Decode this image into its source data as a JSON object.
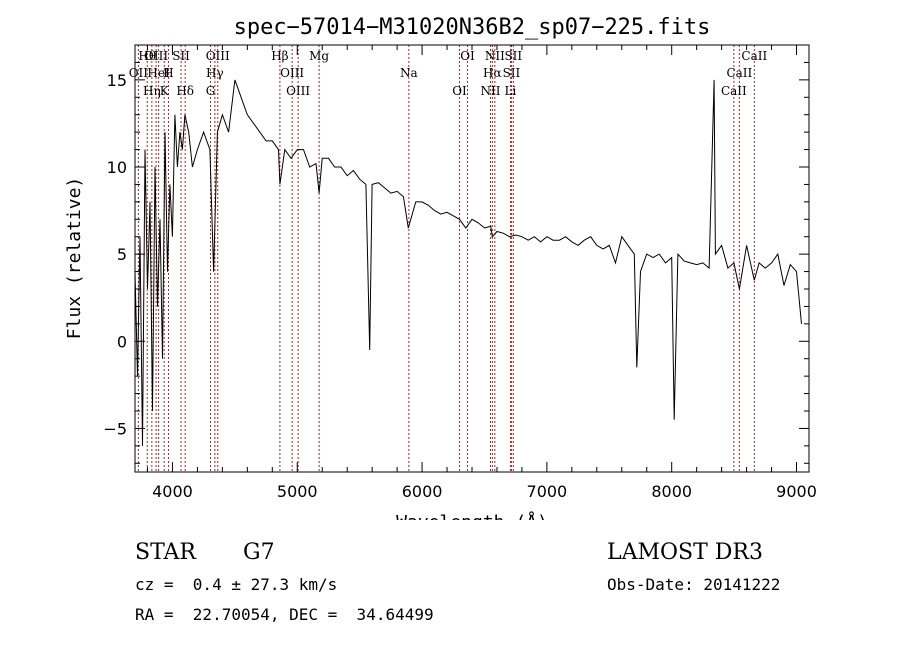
{
  "chart_data": {
    "type": "line",
    "title": "spec−57014−M31020N36B2_sp07−225.fits",
    "xlabel": "Wavelength (Å)",
    "ylabel": "Flux (relative)",
    "xlim": [
      3700,
      9100
    ],
    "ylim": [
      -7.5,
      17
    ],
    "xticks": [
      4000,
      5000,
      6000,
      7000,
      8000,
      9000
    ],
    "yticks": [
      -5,
      0,
      5,
      10,
      15
    ],
    "grid": false,
    "series": [
      {
        "name": "flux",
        "x": [
          3700,
          3720,
          3740,
          3760,
          3780,
          3800,
          3820,
          3840,
          3860,
          3880,
          3900,
          3920,
          3940,
          3960,
          3980,
          4000,
          4020,
          4040,
          4060,
          4080,
          4100,
          4130,
          4160,
          4200,
          4250,
          4300,
          4330,
          4360,
          4400,
          4450,
          4500,
          4550,
          4600,
          4650,
          4700,
          4750,
          4800,
          4850,
          4861,
          4900,
          4950,
          5000,
          5050,
          5100,
          5150,
          5175,
          5200,
          5250,
          5300,
          5350,
          5400,
          5450,
          5500,
          5550,
          5580,
          5600,
          5650,
          5700,
          5750,
          5800,
          5850,
          5890,
          5950,
          6000,
          6050,
          6100,
          6150,
          6200,
          6250,
          6300,
          6350,
          6400,
          6450,
          6500,
          6550,
          6563,
          6600,
          6650,
          6700,
          6750,
          6800,
          6850,
          6900,
          6950,
          7000,
          7050,
          7100,
          7150,
          7200,
          7250,
          7300,
          7350,
          7400,
          7450,
          7500,
          7550,
          7600,
          7650,
          7700,
          7720,
          7750,
          7800,
          7850,
          7900,
          7950,
          8000,
          8020,
          8050,
          8100,
          8150,
          8200,
          8250,
          8300,
          8340,
          8350,
          8400,
          8450,
          8498,
          8542,
          8600,
          8662,
          8700,
          8750,
          8800,
          8850,
          8900,
          8950,
          9000,
          9040
        ],
        "values": [
          4,
          -2,
          6,
          -6,
          11,
          3,
          8,
          -4,
          10,
          2,
          7,
          -1,
          12,
          4,
          9,
          6,
          13,
          10,
          12,
          11,
          13,
          12,
          10,
          11,
          12,
          11,
          4,
          12,
          13,
          12,
          15,
          14,
          13,
          12.5,
          12,
          11.5,
          11.5,
          11,
          9,
          11,
          10.5,
          11,
          11,
          10,
          10.2,
          8.5,
          10.5,
          10.5,
          10,
          10,
          9.5,
          9.8,
          9.3,
          9,
          -0.5,
          9,
          9.1,
          8.8,
          8.5,
          8.6,
          8.3,
          6.5,
          8,
          8,
          7.8,
          7.5,
          7.3,
          7.4,
          7.2,
          7,
          6.5,
          7,
          6.8,
          6.5,
          6.6,
          6,
          6.3,
          6.2,
          6,
          6.1,
          6,
          5.8,
          6,
          5.7,
          6,
          5.8,
          5.8,
          6,
          5.7,
          5.5,
          5.8,
          6,
          5.5,
          5.3,
          5.5,
          4.5,
          6,
          5.5,
          5,
          -1.5,
          4,
          5,
          4.8,
          5,
          4.5,
          4.8,
          -4.5,
          5,
          4.6,
          4.5,
          4.4,
          4.5,
          4.2,
          15,
          5,
          5.5,
          4.2,
          4.5,
          3,
          5.5,
          3.5,
          4.5,
          4.2,
          4.5,
          5,
          3.2,
          4.4,
          4,
          1
        ]
      }
    ],
    "line_markers": [
      {
        "label": "Hθ",
        "wl": 3798
      },
      {
        "label": "OII",
        "wl": 3727
      },
      {
        "label": "Hη",
        "wl": 3835
      },
      {
        "label": "OIII",
        "wl": 3869
      },
      {
        "label": "HeI",
        "wl": 3889
      },
      {
        "label": "K",
        "wl": 3934
      },
      {
        "label": "SII",
        "wl": 4069
      },
      {
        "label": "H",
        "wl": 3968
      },
      {
        "label": "Hδ",
        "wl": 4102
      },
      {
        "label": "OIII",
        "wl": 4363
      },
      {
        "label": "Hγ",
        "wl": 4340
      },
      {
        "label": "G",
        "wl": 4305
      },
      {
        "label": "Hβ",
        "wl": 4861
      },
      {
        "label": "OIII",
        "wl": 4959
      },
      {
        "label": "OIII",
        "wl": 5007
      },
      {
        "label": "Mg",
        "wl": 5175
      },
      {
        "label": "Na",
        "wl": 5894
      },
      {
        "label": "OI",
        "wl": 6300
      },
      {
        "label": "OI",
        "wl": 6364
      },
      {
        "label": "Hα",
        "wl": 6563
      },
      {
        "label": "NII",
        "wl": 6548
      },
      {
        "label": "NII",
        "wl": 6583
      },
      {
        "label": "SII",
        "wl": 6716
      },
      {
        "label": "Li",
        "wl": 6708
      },
      {
        "label": "SII",
        "wl": 6731
      },
      {
        "label": "CaII",
        "wl": 8542
      },
      {
        "label": "CaII",
        "wl": 8498
      },
      {
        "label": "CaII",
        "wl": 8662
      }
    ],
    "marker_color": "#b22222"
  },
  "info": {
    "object_class": "STAR",
    "subclass": "G7",
    "survey": "LAMOST DR3",
    "redshift": "cz =  0.4 ± 27.3 km/s",
    "obs_date": "Obs-Date: 20141222",
    "coords": "RA =  22.70054, DEC =  34.64499"
  }
}
